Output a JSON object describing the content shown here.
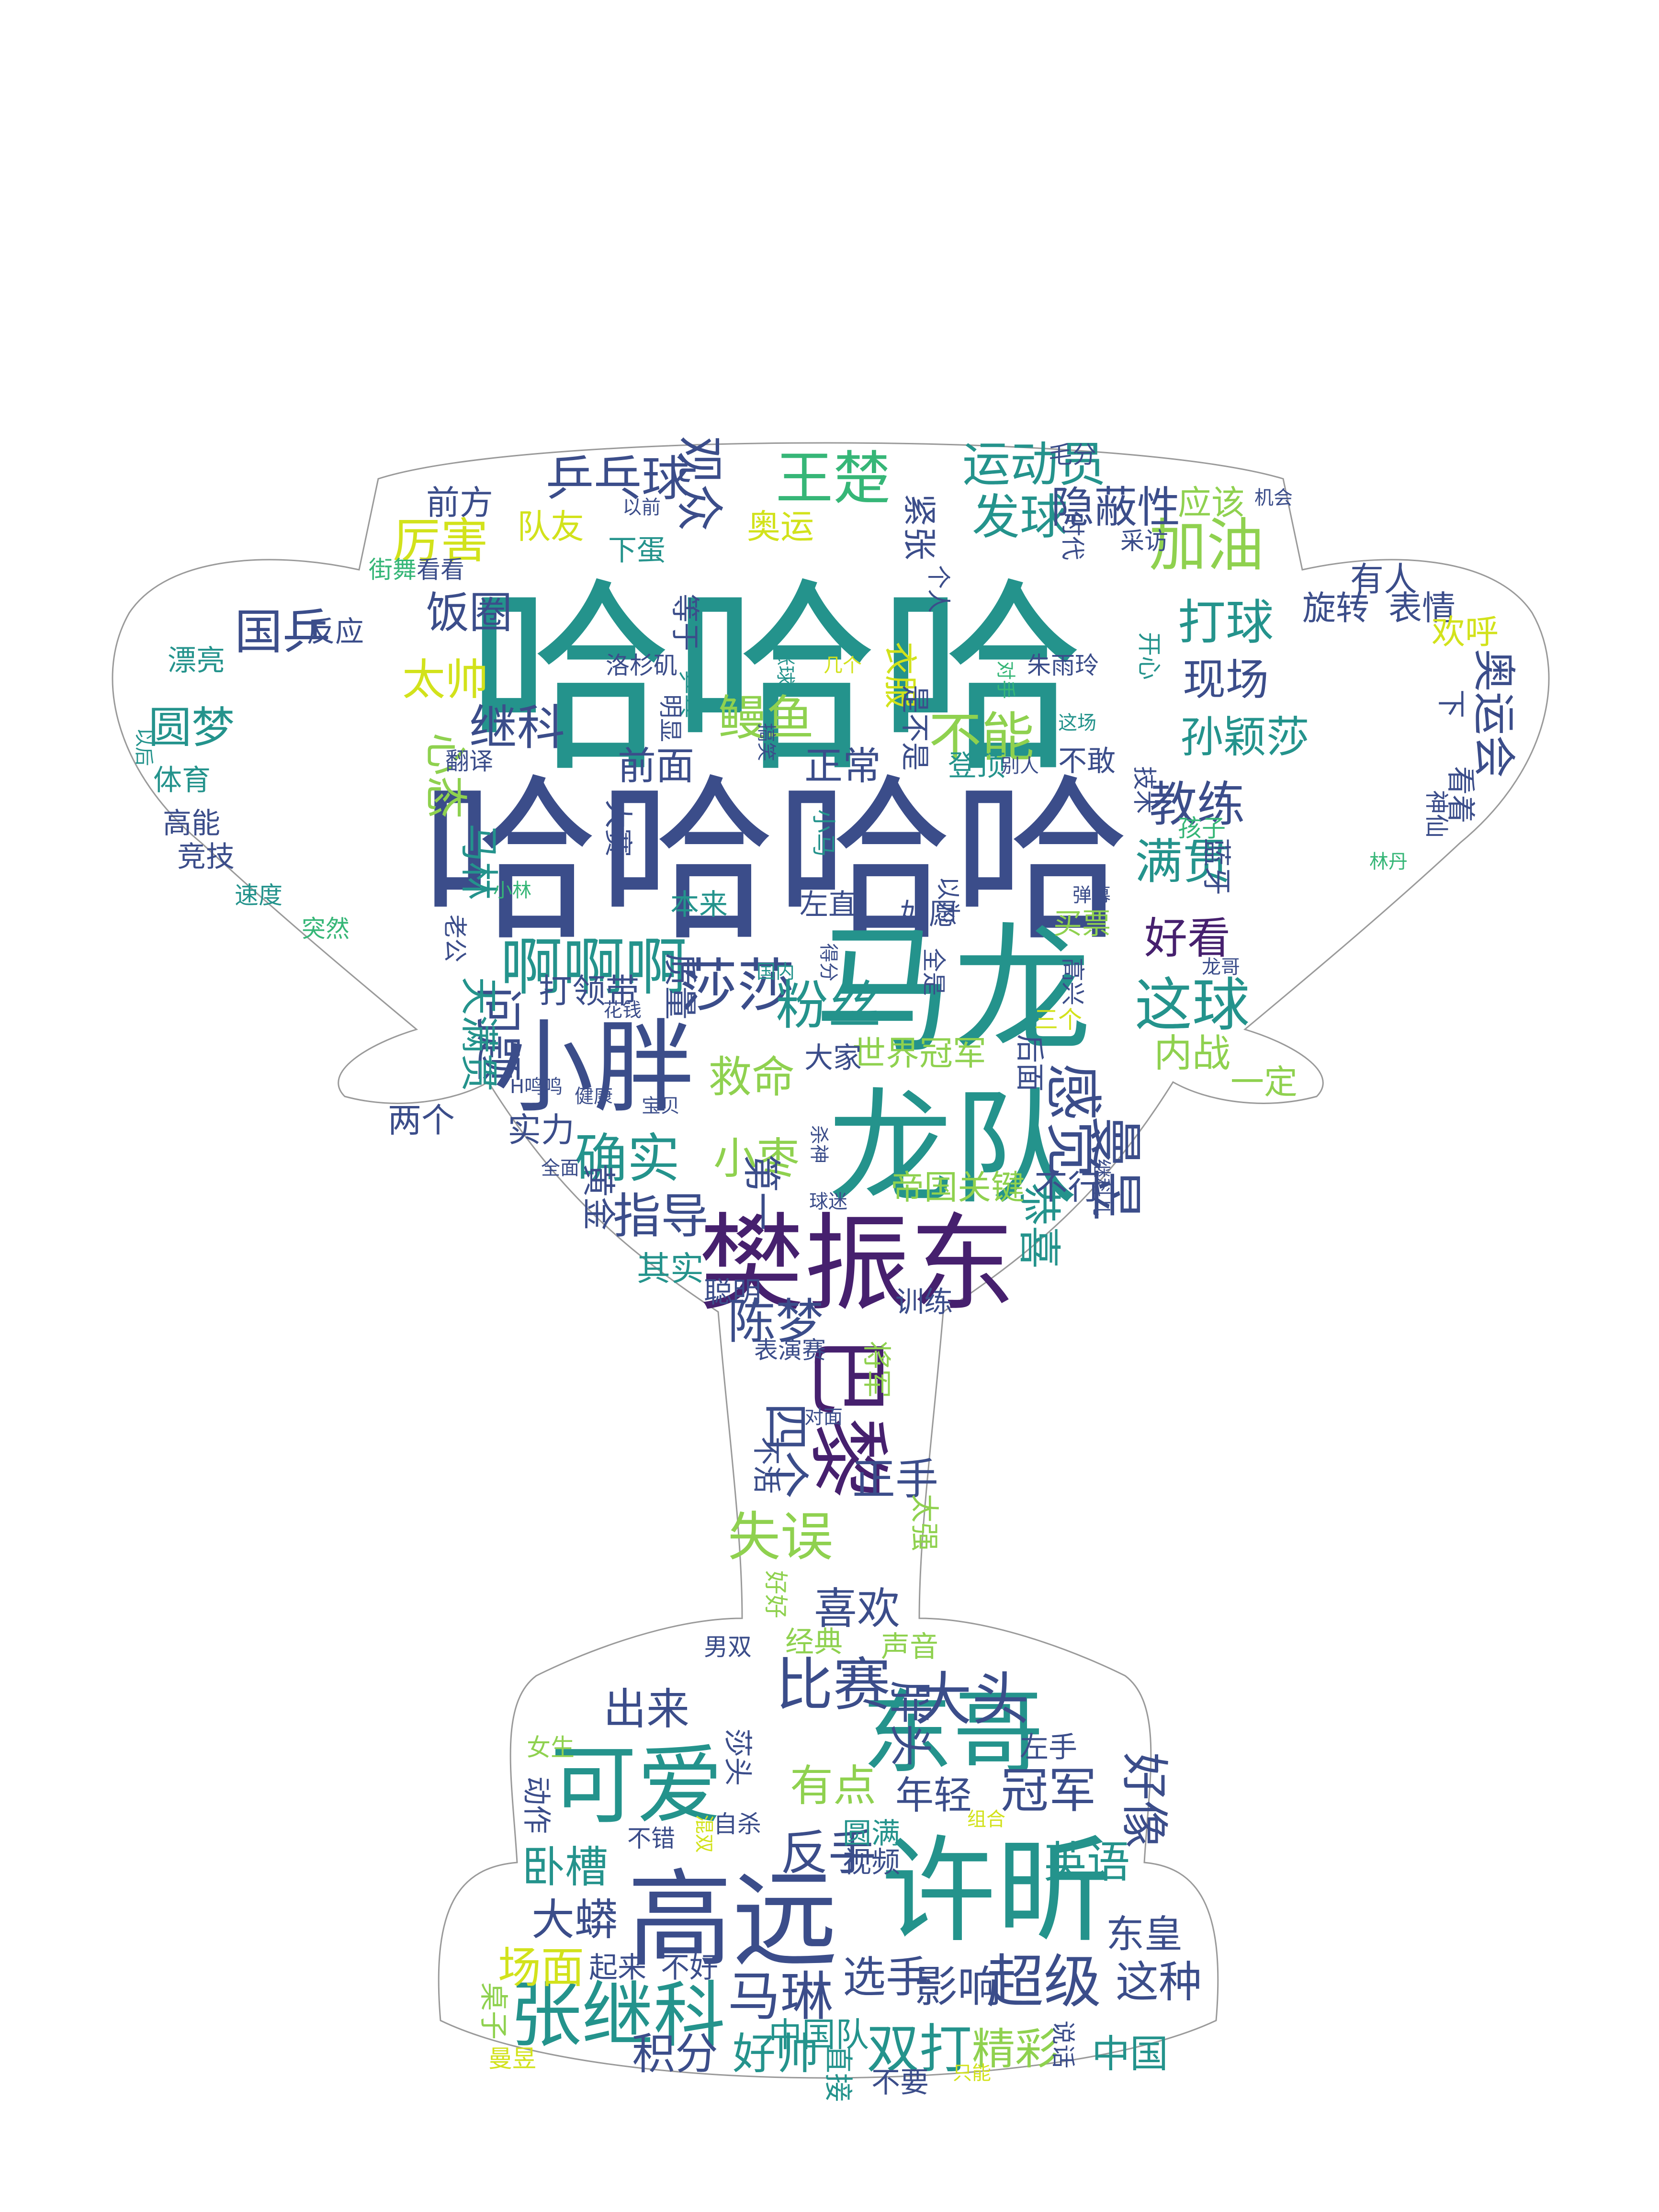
{
  "palette": {
    "dark_purple": "#46206e",
    "indigo": "#3b4d8a",
    "blue": "#2f6f8e",
    "teal": "#24938c",
    "green": "#36b677",
    "lime": "#8fd14f",
    "yellow": "#d2e21b"
  },
  "words": [
    {
      "text": "哈哈哈",
      "color": "teal"
    },
    {
      "text": "哈哈哈哈",
      "color": "indigo"
    },
    {
      "text": "马龙",
      "color": "teal"
    },
    {
      "text": "龙队",
      "color": "teal"
    },
    {
      "text": "樊振东",
      "color": "dark_purple"
    },
    {
      "text": "小胖",
      "color": "indigo"
    },
    {
      "text": "许昕",
      "color": "teal"
    },
    {
      "text": "高远",
      "color": "indigo"
    },
    {
      "text": "东哥",
      "color": "teal"
    },
    {
      "text": "可爱",
      "color": "teal"
    },
    {
      "text": "张继科",
      "color": "teal"
    },
    {
      "text": "巴黎",
      "color": "dark_purple"
    },
    {
      "text": "大头",
      "color": "indigo"
    },
    {
      "text": "比赛",
      "color": "indigo"
    },
    {
      "text": "王楚",
      "color": "green"
    },
    {
      "text": "加油",
      "color": "lime"
    },
    {
      "text": "啊啊啊",
      "color": "teal"
    },
    {
      "text": "这球",
      "color": "teal"
    },
    {
      "text": "运动员",
      "color": "teal"
    },
    {
      "text": "乒乓球",
      "color": "indigo"
    },
    {
      "text": "观众",
      "color": "indigo"
    },
    {
      "text": "发球",
      "color": "teal"
    },
    {
      "text": "隐蔽性",
      "color": "indigo"
    },
    {
      "text": "打球",
      "color": "teal"
    },
    {
      "text": "现场",
      "color": "indigo"
    },
    {
      "text": "教练",
      "color": "indigo"
    },
    {
      "text": "满贯",
      "color": "teal"
    },
    {
      "text": "孙颖莎",
      "color": "teal"
    },
    {
      "text": "不能",
      "color": "lime"
    },
    {
      "text": "鳗鱼",
      "color": "lime"
    },
    {
      "text": "继科",
      "color": "indigo"
    },
    {
      "text": "前面",
      "color": "indigo"
    },
    {
      "text": "正常",
      "color": "indigo"
    },
    {
      "text": "莎莎",
      "color": "indigo"
    },
    {
      "text": "粉丝",
      "color": "teal"
    },
    {
      "text": "救命",
      "color": "lime"
    },
    {
      "text": "问题",
      "color": "indigo"
    },
    {
      "text": "确实",
      "color": "teal"
    },
    {
      "text": "小枣",
      "color": "lime"
    },
    {
      "text": "感觉",
      "color": "indigo"
    },
    {
      "text": "曼昱",
      "color": "indigo"
    },
    {
      "text": "指导",
      "color": "indigo"
    },
    {
      "text": "恭喜",
      "color": "teal"
    },
    {
      "text": "陈梦",
      "color": "indigo"
    },
    {
      "text": "四个",
      "color": "indigo"
    },
    {
      "text": "正手",
      "color": "indigo"
    },
    {
      "text": "失误",
      "color": "lime"
    },
    {
      "text": "喜欢",
      "color": "indigo"
    },
    {
      "text": "出来",
      "color": "indigo"
    },
    {
      "text": "胖头",
      "color": "indigo"
    },
    {
      "text": "有点",
      "color": "lime"
    },
    {
      "text": "冠军",
      "color": "indigo"
    },
    {
      "text": "好像",
      "color": "indigo"
    },
    {
      "text": "反手",
      "color": "indigo"
    },
    {
      "text": "年轻",
      "color": "indigo"
    },
    {
      "text": "英语",
      "color": "teal"
    },
    {
      "text": "卧槽",
      "color": "teal"
    },
    {
      "text": "大蟒",
      "color": "indigo"
    },
    {
      "text": "场面",
      "color": "yellow"
    },
    {
      "text": "马琳",
      "color": "indigo"
    },
    {
      "text": "选手",
      "color": "indigo"
    },
    {
      "text": "影响",
      "color": "indigo"
    },
    {
      "text": "超级",
      "color": "indigo"
    },
    {
      "text": "这种",
      "color": "indigo"
    },
    {
      "text": "双打",
      "color": "teal"
    },
    {
      "text": "精彩",
      "color": "lime"
    },
    {
      "text": "好帅",
      "color": "teal"
    },
    {
      "text": "积分",
      "color": "indigo"
    },
    {
      "text": "东皇",
      "color": "indigo"
    },
    {
      "text": "中国",
      "color": "teal"
    },
    {
      "text": "中国队",
      "color": "teal"
    },
    {
      "text": "厉害",
      "color": "yellow"
    },
    {
      "text": "饭圈",
      "color": "indigo"
    },
    {
      "text": "国乒",
      "color": "indigo"
    },
    {
      "text": "圆梦",
      "color": "teal"
    },
    {
      "text": "太帅",
      "color": "yellow"
    },
    {
      "text": "心态",
      "color": "lime"
    },
    {
      "text": "马林",
      "color": "teal"
    },
    {
      "text": "天满贯",
      "color": "teal"
    },
    {
      "text": "打领带",
      "color": "indigo"
    },
    {
      "text": "质量",
      "color": "indigo"
    },
    {
      "text": "世界冠军",
      "color": "lime"
    },
    {
      "text": "内战",
      "color": "lime"
    },
    {
      "text": "好看",
      "color": "dark_purple"
    },
    {
      "text": "奥运会",
      "color": "indigo"
    },
    {
      "text": "旋转",
      "color": "indigo"
    },
    {
      "text": "表情",
      "color": "indigo"
    },
    {
      "text": "欢呼",
      "color": "yellow"
    },
    {
      "text": "前方",
      "color": "indigo"
    },
    {
      "text": "队友",
      "color": "yellow"
    },
    {
      "text": "奥运",
      "color": "yellow"
    },
    {
      "text": "紧张",
      "color": "indigo"
    },
    {
      "text": "应该",
      "color": "lime"
    },
    {
      "text": "一定",
      "color": "lime"
    },
    {
      "text": "两个",
      "color": "indigo"
    },
    {
      "text": "实力",
      "color": "indigo"
    },
    {
      "text": "帝国",
      "color": "lime"
    },
    {
      "text": "关键",
      "color": "lime"
    },
    {
      "text": "第一",
      "color": "indigo"
    },
    {
      "text": "不行",
      "color": "indigo"
    },
    {
      "text": "黄金",
      "color": "indigo"
    },
    {
      "text": "其实",
      "color": "teal"
    },
    {
      "text": "聪明",
      "color": "indigo"
    },
    {
      "text": "训练",
      "color": "indigo"
    },
    {
      "text": "表演赛",
      "color": "indigo"
    },
    {
      "text": "将军",
      "color": "lime"
    },
    {
      "text": "不活",
      "color": "indigo"
    },
    {
      "text": "太强",
      "color": "lime"
    },
    {
      "text": "好好",
      "color": "lime"
    },
    {
      "text": "男双",
      "color": "indigo"
    },
    {
      "text": "经典",
      "color": "lime"
    },
    {
      "text": "声音",
      "color": "lime"
    },
    {
      "text": "女生",
      "color": "lime"
    },
    {
      "text": "动作",
      "color": "indigo"
    },
    {
      "text": "莎头",
      "color": "indigo"
    },
    {
      "text": "左手",
      "color": "indigo"
    },
    {
      "text": "自杀",
      "color": "indigo"
    },
    {
      "text": "不错",
      "color": "indigo"
    },
    {
      "text": "视频",
      "color": "indigo"
    },
    {
      "text": "圆满",
      "color": "teal"
    },
    {
      "text": "组合",
      "color": "yellow"
    },
    {
      "text": "起来",
      "color": "indigo"
    },
    {
      "text": "不好",
      "color": "indigo"
    },
    {
      "text": "桌子",
      "color": "lime"
    },
    {
      "text": "曼昱",
      "color": "yellow"
    },
    {
      "text": "直接",
      "color": "teal"
    },
    {
      "text": "不要",
      "color": "indigo"
    },
    {
      "text": "只能",
      "color": "yellow"
    },
    {
      "text": "说话",
      "color": "indigo"
    },
    {
      "text": "漂亮",
      "color": "teal"
    },
    {
      "text": "体育",
      "color": "teal"
    },
    {
      "text": "高能",
      "color": "indigo"
    },
    {
      "text": "竞技",
      "color": "indigo"
    },
    {
      "text": "速度",
      "color": "teal"
    },
    {
      "text": "突然",
      "color": "green"
    },
    {
      "text": "以后",
      "color": "teal"
    },
    {
      "text": "反应",
      "color": "indigo"
    },
    {
      "text": "街舞",
      "color": "green"
    },
    {
      "text": "看看",
      "color": "indigo"
    },
    {
      "text": "以前",
      "color": "indigo"
    },
    {
      "text": "下蛋",
      "color": "teal"
    },
    {
      "text": "等于",
      "color": "indigo"
    },
    {
      "text": "洛杉矶",
      "color": "indigo"
    },
    {
      "text": "涨球",
      "color": "teal"
    },
    {
      "text": "几个",
      "color": "yellow"
    },
    {
      "text": "衣服",
      "color": "yellow"
    },
    {
      "text": "乒乓",
      "color": "teal"
    },
    {
      "text": "明显",
      "color": "indigo"
    },
    {
      "text": "翻译",
      "color": "indigo"
    },
    {
      "text": "是不是",
      "color": "indigo"
    },
    {
      "text": "搞笑",
      "color": "indigo"
    },
    {
      "text": "登顶",
      "color": "teal"
    },
    {
      "text": "别人",
      "color": "indigo"
    },
    {
      "text": "不敢",
      "color": "indigo"
    },
    {
      "text": "技术",
      "color": "indigo"
    },
    {
      "text": "孩子",
      "color": "green"
    },
    {
      "text": "蓝牙",
      "color": "indigo"
    },
    {
      "text": "毛分",
      "color": "indigo"
    },
    {
      "text": "采访",
      "color": "indigo"
    },
    {
      "text": "机会",
      "color": "indigo"
    },
    {
      "text": "时代",
      "color": "indigo"
    },
    {
      "text": "个人",
      "color": "indigo"
    },
    {
      "text": "对手",
      "color": "green"
    },
    {
      "text": "朱雨玲",
      "color": "indigo"
    },
    {
      "text": "这场",
      "color": "teal"
    },
    {
      "text": "开心",
      "color": "teal"
    },
    {
      "text": "有人",
      "color": "indigo"
    },
    {
      "text": "下",
      "color": "indigo"
    },
    {
      "text": "看着",
      "color": "indigo"
    },
    {
      "text": "神仙",
      "color": "indigo"
    },
    {
      "text": "林丹",
      "color": "green"
    },
    {
      "text": "老公",
      "color": "indigo"
    },
    {
      "text": "小林",
      "color": "green"
    },
    {
      "text": "大赛",
      "color": "indigo"
    },
    {
      "text": "小马",
      "color": "teal"
    },
    {
      "text": "以为",
      "color": "indigo"
    },
    {
      "text": "弹幕",
      "color": "indigo"
    },
    {
      "text": "本来",
      "color": "teal"
    },
    {
      "text": "左直",
      "color": "indigo"
    },
    {
      "text": "如愿",
      "color": "indigo"
    },
    {
      "text": "买票",
      "color": "lime"
    },
    {
      "text": "龙哥",
      "color": "indigo"
    },
    {
      "text": "高兴",
      "color": "indigo"
    },
    {
      "text": "三个",
      "color": "yellow"
    },
    {
      "text": "全是",
      "color": "indigo"
    },
    {
      "text": "得分",
      "color": "indigo"
    },
    {
      "text": "国内",
      "color": "teal"
    },
    {
      "text": "花钱",
      "color": "indigo"
    },
    {
      "text": "大家",
      "color": "indigo"
    },
    {
      "text": "后面",
      "color": "indigo"
    },
    {
      "text": "H鸣鸣",
      "color": "indigo"
    },
    {
      "text": "健康",
      "color": "indigo"
    },
    {
      "text": "宝贝",
      "color": "indigo"
    },
    {
      "text": "全面",
      "color": "indigo"
    },
    {
      "text": "杀神",
      "color": "indigo"
    },
    {
      "text": "球迷",
      "color": "indigo"
    },
    {
      "text": "继科儿",
      "color": "indigo"
    },
    {
      "text": "混双",
      "color": "yellow"
    },
    {
      "text": "对面",
      "color": "indigo"
    },
    {
      "text": "压力",
      "color": "indigo"
    }
  ]
}
